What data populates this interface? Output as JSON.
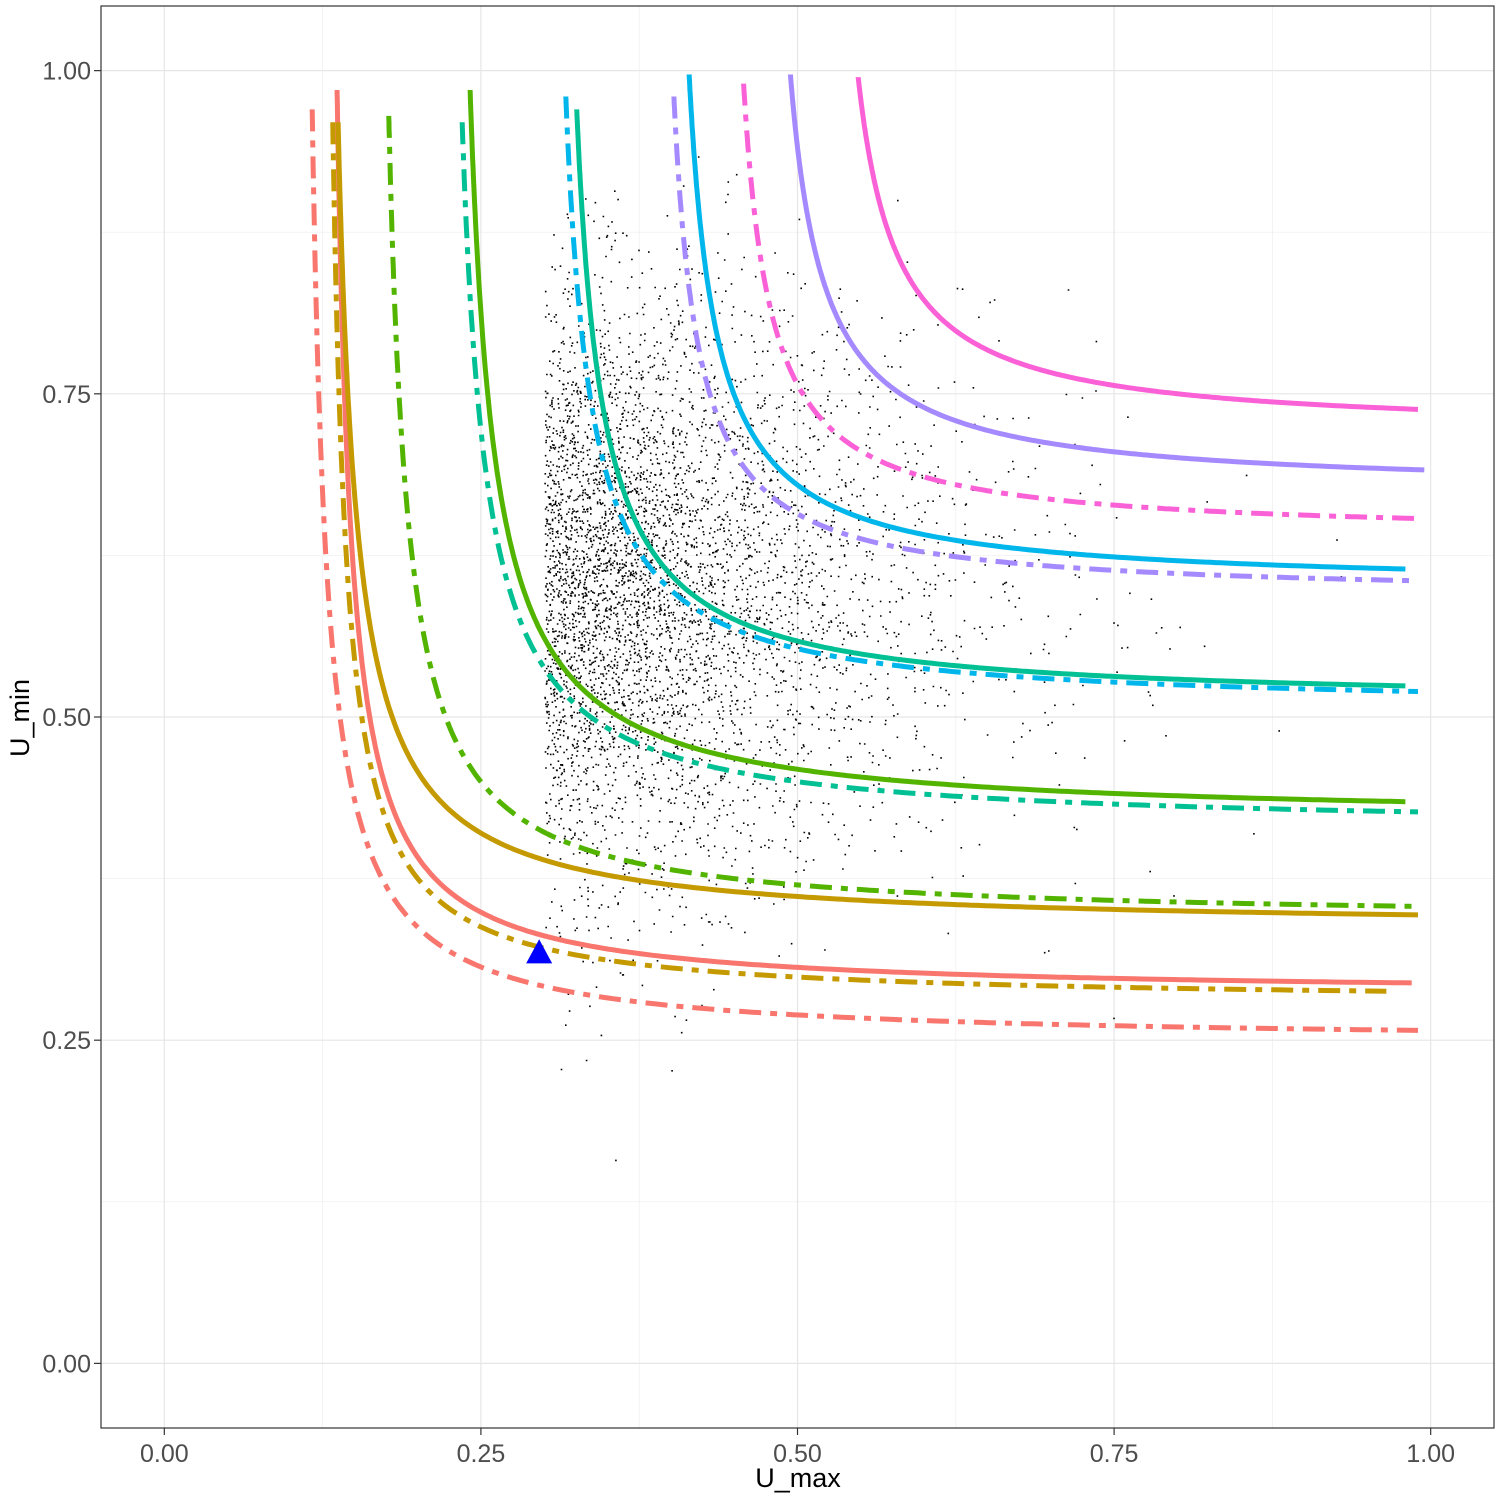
{
  "chart_data": {
    "type": "scatter",
    "title": "",
    "xlabel": "U_max",
    "ylabel": "U_min",
    "xlim": [
      -0.05,
      1.05
    ],
    "ylim": [
      -0.05,
      1.05
    ],
    "x_ticks": [
      "0.00",
      "0.25",
      "0.50",
      "0.75",
      "1.00"
    ],
    "y_ticks": [
      "0.00",
      "0.25",
      "0.50",
      "0.75",
      "1.00"
    ],
    "grid": true,
    "legend": "none",
    "scatter_points": {
      "approx_count": 5000,
      "color": "#000000",
      "description_center": [
        0.3,
        0.6
      ],
      "spread_x": 0.13,
      "spread_y": 0.11
    },
    "marker": {
      "shape": "triangle",
      "x": 0.296,
      "y": 0.318,
      "color": "#0000ff"
    },
    "curves": [
      {
        "color": "#F8766D",
        "style": "solid",
        "x_asym": 0.125,
        "y_asym": 0.285,
        "k": 0.008,
        "x_end": 0.985,
        "y_top": 0.985
      },
      {
        "color": "#F8766D",
        "style": "dashdot",
        "x_asym": 0.105,
        "y_asym": 0.248,
        "k": 0.0085,
        "x_end": 0.99,
        "y_top": 0.97
      },
      {
        "color": "#C49A00",
        "style": "solid",
        "x_asym": 0.122,
        "y_asym": 0.336,
        "k": 0.0095,
        "x_end": 0.99,
        "y_top": 0.96
      },
      {
        "color": "#C49A00",
        "style": "dashdot",
        "x_asym": 0.122,
        "y_asym": 0.279,
        "k": 0.0075,
        "x_end": 0.965,
        "y_top": 0.96
      },
      {
        "color": "#53B400",
        "style": "solid",
        "x_asym": 0.222,
        "y_asym": 0.42,
        "k": 0.011,
        "x_end": 0.98,
        "y_top": 0.985
      },
      {
        "color": "#53B400",
        "style": "dashdot",
        "x_asym": 0.162,
        "y_asym": 0.342,
        "k": 0.0095,
        "x_end": 0.99,
        "y_top": 0.965
      },
      {
        "color": "#00C094",
        "style": "solid",
        "x_asym": 0.305,
        "y_asym": 0.51,
        "k": 0.0095,
        "x_end": 0.98,
        "y_top": 0.97
      },
      {
        "color": "#00C094",
        "style": "dashdot",
        "x_asym": 0.216,
        "y_asym": 0.413,
        "k": 0.0105,
        "x_end": 0.99,
        "y_top": 0.96
      },
      {
        "color": "#00B6EB",
        "style": "solid",
        "x_asym": 0.393,
        "y_asym": 0.6,
        "k": 0.0085,
        "x_end": 0.98,
        "y_top": 0.997
      },
      {
        "color": "#00B6EB",
        "style": "dashdot",
        "x_asym": 0.297,
        "y_asym": 0.506,
        "k": 0.0095,
        "x_end": 0.99,
        "y_top": 0.98
      },
      {
        "color": "#A58AFF",
        "style": "solid",
        "x_asym": 0.468,
        "y_asym": 0.675,
        "k": 0.0085,
        "x_end": 0.995,
        "y_top": 0.997
      },
      {
        "color": "#A58AFF",
        "style": "dashdot",
        "x_asym": 0.383,
        "y_asym": 0.593,
        "k": 0.0075,
        "x_end": 0.99,
        "y_top": 0.98
      },
      {
        "color": "#FB61D7",
        "style": "solid",
        "x_asym": 0.517,
        "y_asym": 0.72,
        "k": 0.0085,
        "x_end": 0.99,
        "y_top": 0.995
      },
      {
        "color": "#FB61D7",
        "style": "dashdot",
        "x_asym": 0.436,
        "y_asym": 0.64,
        "k": 0.0075,
        "x_end": 0.99,
        "y_top": 0.99
      }
    ]
  }
}
